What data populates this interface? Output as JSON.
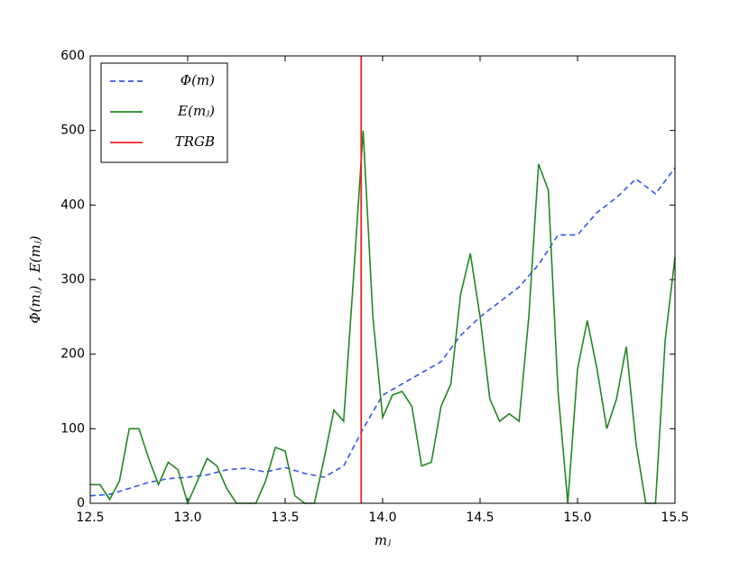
{
  "chart_data": {
    "type": "line",
    "xlabel": "mⱼ",
    "ylabel": "Φ(mⱼ) , E(mⱼ)",
    "xlim": [
      12.5,
      15.5
    ],
    "ylim": [
      0,
      600
    ],
    "xticks": [
      12.5,
      {
        "value": 13,
        "label": "13.0"
      },
      13.5,
      {
        "value": 14,
        "label": "14.0"
      },
      14.5,
      {
        "value": 15,
        "label": "15.0"
      },
      15.5
    ],
    "yticks": [
      0,
      100,
      200,
      300,
      400,
      500,
      600
    ],
    "legend": "upper left",
    "series": [
      {
        "name": "Φ(m)",
        "color": "#3355ee",
        "dash": true,
        "x": [
          12.5,
          12.6,
          12.7,
          12.8,
          12.9,
          13.0,
          13.1,
          13.2,
          13.3,
          13.4,
          13.5,
          13.6,
          13.7,
          13.8,
          13.9,
          14.0,
          14.1,
          14.2,
          14.3,
          14.4,
          14.5,
          14.6,
          14.7,
          14.8,
          14.9,
          15.0,
          15.1,
          15.2,
          15.3,
          15.4,
          15.5
        ],
        "values": [
          10,
          12,
          20,
          28,
          33,
          35,
          38,
          45,
          47,
          42,
          48,
          40,
          35,
          50,
          100,
          145,
          160,
          175,
          190,
          225,
          250,
          270,
          290,
          320,
          360,
          360,
          390,
          410,
          435,
          415,
          450
        ]
      },
      {
        "name": "E(mⱼ)",
        "color": "#228822",
        "dash": false,
        "x": [
          12.5,
          12.55,
          12.6,
          12.65,
          12.7,
          12.75,
          12.8,
          12.85,
          12.9,
          12.95,
          13.0,
          13.05,
          13.1,
          13.15,
          13.2,
          13.25,
          13.3,
          13.35,
          13.4,
          13.45,
          13.5,
          13.55,
          13.6,
          13.65,
          13.7,
          13.75,
          13.8,
          13.85,
          13.9,
          13.95,
          14.0,
          14.05,
          14.1,
          14.15,
          14.2,
          14.25,
          14.3,
          14.35,
          14.4,
          14.45,
          14.5,
          14.55,
          14.6,
          14.65,
          14.7,
          14.75,
          14.8,
          14.85,
          14.9,
          14.95,
          15.0,
          15.05,
          15.1,
          15.15,
          15.2,
          15.25,
          15.3,
          15.35,
          15.4,
          15.45,
          15.5
        ],
        "values": [
          25,
          25,
          5,
          30,
          100,
          100,
          60,
          25,
          55,
          45,
          0,
          30,
          60,
          50,
          20,
          0,
          0,
          0,
          30,
          75,
          70,
          10,
          0,
          0,
          60,
          125,
          110,
          300,
          500,
          250,
          115,
          145,
          150,
          130,
          50,
          55,
          130,
          160,
          280,
          335,
          250,
          140,
          110,
          120,
          110,
          250,
          455,
          420,
          150,
          0,
          180,
          245,
          180,
          100,
          140,
          210,
          80,
          0,
          0,
          220,
          330
        ]
      }
    ],
    "vlines": [
      {
        "name": "TRGB",
        "color": "#ee2222",
        "x": 13.89
      }
    ]
  }
}
